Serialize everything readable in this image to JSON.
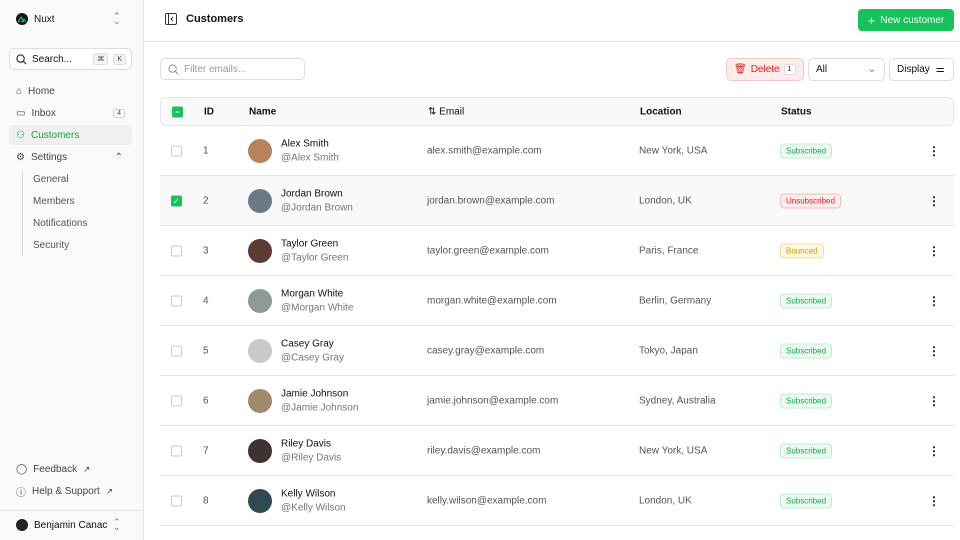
{
  "sidebar": {
    "brand": "Nuxt",
    "search": "Search...",
    "kbd": [
      "⌘",
      "K"
    ],
    "nav": [
      {
        "label": "Home",
        "icon": "home-icon"
      },
      {
        "label": "Inbox",
        "icon": "inbox-icon",
        "badge": "4"
      },
      {
        "label": "Customers",
        "icon": "users-icon",
        "active": true
      },
      {
        "label": "Settings",
        "icon": "gear-icon"
      }
    ],
    "settings_items": [
      "General",
      "Members",
      "Notifications",
      "Security"
    ],
    "footer": [
      {
        "label": "Feedback",
        "icon": "chat-icon"
      },
      {
        "label": "Help & Support",
        "icon": "info-icon"
      }
    ],
    "user": "Benjamin Canac"
  },
  "header": {
    "title": "Customers",
    "new_button": "New customer"
  },
  "toolbar": {
    "filter_placeholder": "Filter emails...",
    "delete_label": "Delete",
    "delete_count": "1",
    "status_filter": "All",
    "display_label": "Display"
  },
  "table": {
    "columns": [
      "ID",
      "Name",
      "Email",
      "Location",
      "Status"
    ],
    "rows": [
      {
        "id": "1",
        "name": "Alex Smith",
        "handle": "@Alex Smith",
        "email": "alex.smith@example.com",
        "location": "New York, USA",
        "status": "Subscribed",
        "selected": false,
        "avatar": "#b9825c"
      },
      {
        "id": "2",
        "name": "Jordan Brown",
        "handle": "@Jordan Brown",
        "email": "jordan.brown@example.com",
        "location": "London, UK",
        "status": "Unsubscribed",
        "selected": true,
        "avatar": "#6b7a86"
      },
      {
        "id": "3",
        "name": "Taylor Green",
        "handle": "@Taylor Green",
        "email": "taylor.green@example.com",
        "location": "Paris, France",
        "status": "Bounced",
        "selected": false,
        "avatar": "#5a3c33"
      },
      {
        "id": "4",
        "name": "Morgan White",
        "handle": "@Morgan White",
        "email": "morgan.white@example.com",
        "location": "Berlin, Germany",
        "status": "Subscribed",
        "selected": false,
        "avatar": "#8d9a95"
      },
      {
        "id": "5",
        "name": "Casey Gray",
        "handle": "@Casey Gray",
        "email": "casey.gray@example.com",
        "location": "Tokyo, Japan",
        "status": "Subscribed",
        "selected": false,
        "avatar": "#c9c9c9"
      },
      {
        "id": "6",
        "name": "Jamie Johnson",
        "handle": "@Jamie Johnson",
        "email": "jamie.johnson@example.com",
        "location": "Sydney, Australia",
        "status": "Subscribed",
        "selected": false,
        "avatar": "#a08a6c"
      },
      {
        "id": "7",
        "name": "Riley Davis",
        "handle": "@Riley Davis",
        "email": "riley.davis@example.com",
        "location": "New York, USA",
        "status": "Subscribed",
        "selected": false,
        "avatar": "#3d3330"
      },
      {
        "id": "8",
        "name": "Kelly Wilson",
        "handle": "@Kelly Wilson",
        "email": "kelly.wilson@example.com",
        "location": "London, UK",
        "status": "Subscribed",
        "selected": false,
        "avatar": "#2f4a55"
      }
    ]
  }
}
